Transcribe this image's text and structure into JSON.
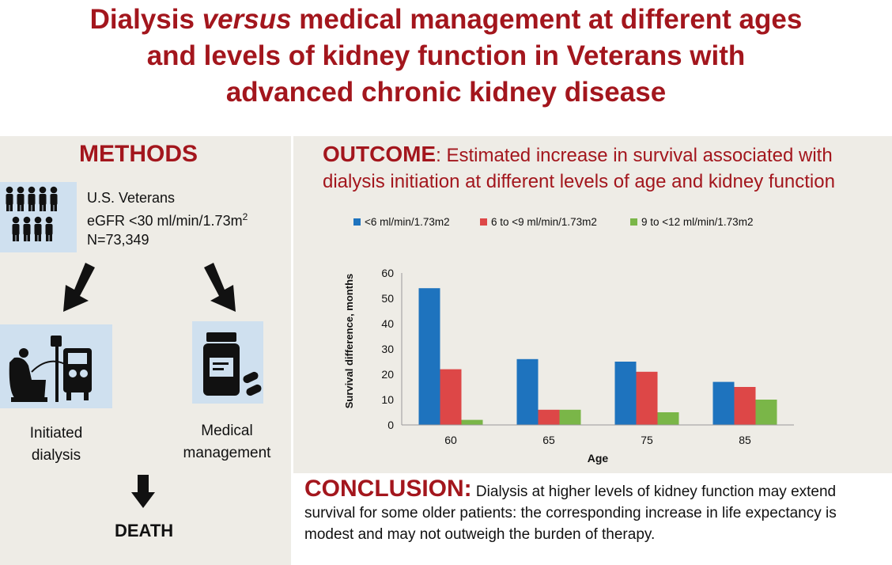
{
  "title": {
    "line1_a": "Dialysis ",
    "line1_em": "versus",
    "line1_b": " medical management at different ages",
    "line2": "and levels of kidney function in Veterans with",
    "line3": "advanced chronic kidney disease"
  },
  "methods": {
    "heading": "METHODS",
    "population_line1": "U.S. Veterans",
    "population_line2": "eGFR <30 ml/min/1.73m",
    "population_line2_sup": "2",
    "population_line3": "N=73,349",
    "branch_left_line1": "Initiated",
    "branch_left_line2": "dialysis",
    "branch_right_line1": "Medical",
    "branch_right_line2": "management",
    "outcome_label": "DEATH"
  },
  "outcome": {
    "heading": "OUTCOME",
    "text_line1": ": Estimated increase in survival associated with",
    "text_line2": "dialysis initiation at different levels of age and kidney function"
  },
  "conclusion": {
    "heading": "CONCLUSION:",
    "text": " Dialysis at higher levels of kidney function may extend survival for some older patients: the corresponding increase in life expectancy is modest and may not outweigh the burden of therapy."
  },
  "colors": {
    "accent": "#a3161d",
    "series1": "#1e73be",
    "series2": "#dd4747",
    "series3": "#7ab648"
  },
  "chart_data": {
    "type": "bar",
    "title": "",
    "xlabel": "Age",
    "ylabel": "Survival difference, months",
    "categories": [
      "60",
      "65",
      "75",
      "85"
    ],
    "ylim": [
      0,
      60
    ],
    "yticks": [
      "0",
      "10",
      "20",
      "30",
      "40",
      "50",
      "60"
    ],
    "grid": false,
    "legend_position": "top",
    "series": [
      {
        "name": "<6 ml/min/1.73m2",
        "color": "#1e73be",
        "values": [
          54,
          26,
          25,
          17
        ]
      },
      {
        "name": "6 to <9 ml/min/1.73m2",
        "color": "#dd4747",
        "values": [
          22,
          6,
          21,
          15
        ]
      },
      {
        "name": "9 to <12 ml/min/1.73m2",
        "color": "#7ab648",
        "values": [
          2,
          6,
          5,
          10
        ]
      }
    ]
  }
}
